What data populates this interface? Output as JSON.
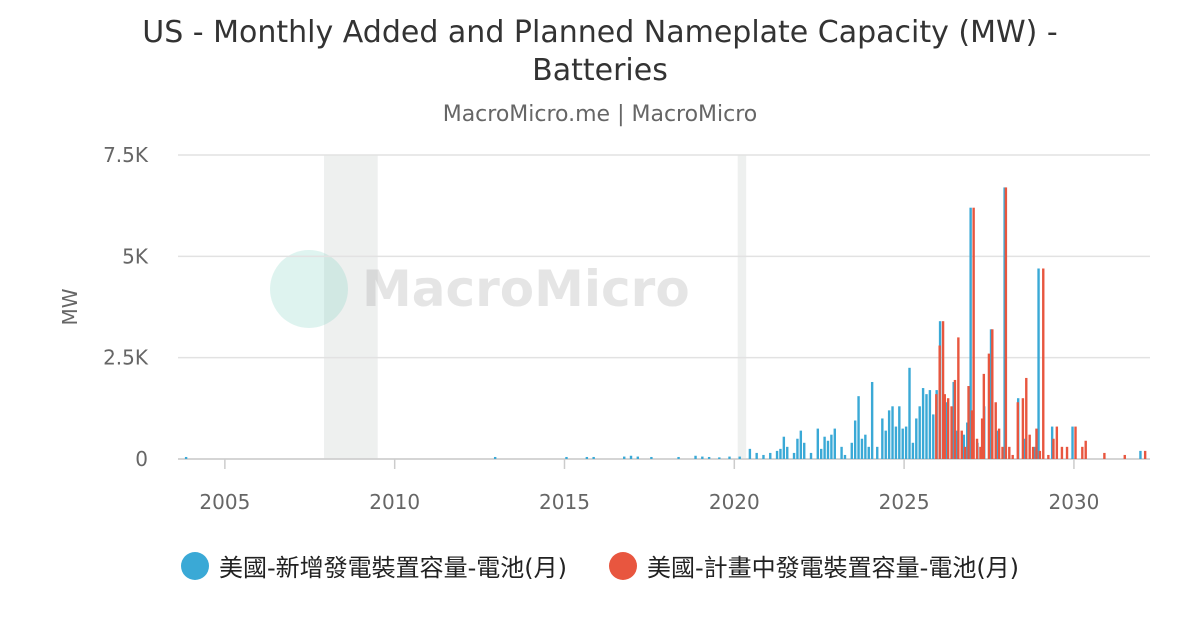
{
  "chart_data": {
    "type": "bar",
    "title": "US - Monthly Added and Planned Nameplate Capacity (MW) - Batteries",
    "subtitle": "MacroMicro.me | MacroMicro",
    "watermark": "MacroMicro",
    "y_label": "MW",
    "xlim": [
      2003.62,
      2032.24
    ],
    "xticks": [
      2005,
      2010,
      2015,
      2020,
      2025,
      2030
    ],
    "ylim": [
      0,
      7500
    ],
    "yticks": [
      0,
      {
        "value": 2500,
        "label": "2.5K"
      },
      {
        "value": 5000,
        "label": "5K"
      },
      {
        "value": 7500,
        "label": "7.5K"
      }
    ],
    "grid": true,
    "shaded_regions": [
      [
        2007.92,
        2009.5
      ],
      [
        2020.1,
        2020.35
      ]
    ],
    "legend": "bottom",
    "series": [
      {
        "name": "美國-新增發電裝置容量-電池(月)",
        "color": "#3aa9d6",
        "x": [
          2003.9,
          2013.0,
          2015.1,
          2015.7,
          2015.9,
          2016.8,
          2017.0,
          2017.2,
          2017.6,
          2018.4,
          2018.9,
          2019.1,
          2019.3,
          2019.6,
          2019.9,
          2020.2,
          2020.5,
          2020.7,
          2020.9,
          2021.1,
          2021.3,
          2021.4,
          2021.5,
          2021.6,
          2021.8,
          2021.9,
          2022.0,
          2022.1,
          2022.3,
          2022.5,
          2022.6,
          2022.7,
          2022.8,
          2022.9,
          2023.0,
          2023.2,
          2023.3,
          2023.5,
          2023.6,
          2023.7,
          2023.8,
          2023.9,
          2024.0,
          2024.1,
          2024.25,
          2024.4,
          2024.5,
          2024.6,
          2024.7,
          2024.8,
          2024.9,
          2025.0,
          2025.1,
          2025.2,
          2025.3,
          2025.4,
          2025.5,
          2025.6,
          2025.7,
          2025.8,
          2025.9,
          2026.0,
          2026.1,
          2026.3,
          2026.5,
          2026.6,
          2026.8,
          2026.9,
          2027.0,
          2027.2,
          2027.4,
          2027.6,
          2027.8,
          2028.0,
          2028.4,
          2028.6,
          2028.9,
          2029.0,
          2029.4,
          2030.0,
          2032.0
        ],
        "values": [
          50,
          50,
          50,
          50,
          50,
          60,
          80,
          60,
          50,
          50,
          80,
          60,
          50,
          40,
          60,
          60,
          250,
          150,
          100,
          150,
          200,
          250,
          550,
          300,
          150,
          500,
          700,
          400,
          150,
          750,
          250,
          550,
          450,
          600,
          750,
          300,
          100,
          400,
          950,
          1550,
          500,
          600,
          300,
          1900,
          300,
          1000,
          700,
          1200,
          1300,
          800,
          1300,
          750,
          800,
          2250,
          400,
          1000,
          1300,
          1750,
          1600,
          1700,
          1100,
          1700,
          3400,
          1400,
          1900,
          700,
          600,
          900,
          6200,
          400,
          1300,
          3200,
          700,
          6700,
          1500,
          500,
          300,
          4700,
          800,
          800,
          200
        ]
      },
      {
        "name": "美國-計畫中發電裝置容量-電池(月)",
        "color": "#e8563f",
        "x": [
          2025.9,
          2026.0,
          2026.1,
          2026.15,
          2026.25,
          2026.35,
          2026.45,
          2026.55,
          2026.65,
          2026.75,
          2026.85,
          2026.95,
          2027.0,
          2027.1,
          2027.2,
          2027.25,
          2027.3,
          2027.45,
          2027.55,
          2027.65,
          2027.75,
          2027.85,
          2027.95,
          2028.05,
          2028.15,
          2028.3,
          2028.45,
          2028.55,
          2028.65,
          2028.75,
          2028.85,
          2028.95,
          2029.05,
          2029.2,
          2029.35,
          2029.45,
          2029.6,
          2029.75,
          2030.0,
          2030.2,
          2030.3,
          2030.85,
          2031.45,
          2032.05
        ],
        "values": [
          1600,
          2800,
          3400,
          1600,
          1500,
          1300,
          1950,
          3000,
          700,
          300,
          1800,
          1200,
          6200,
          500,
          300,
          1000,
          2100,
          2600,
          3200,
          1400,
          750,
          300,
          6700,
          300,
          100,
          1400,
          1500,
          2000,
          600,
          300,
          750,
          200,
          4700,
          100,
          500,
          800,
          300,
          300,
          800,
          300,
          450,
          150,
          100,
          200
        ]
      }
    ]
  }
}
